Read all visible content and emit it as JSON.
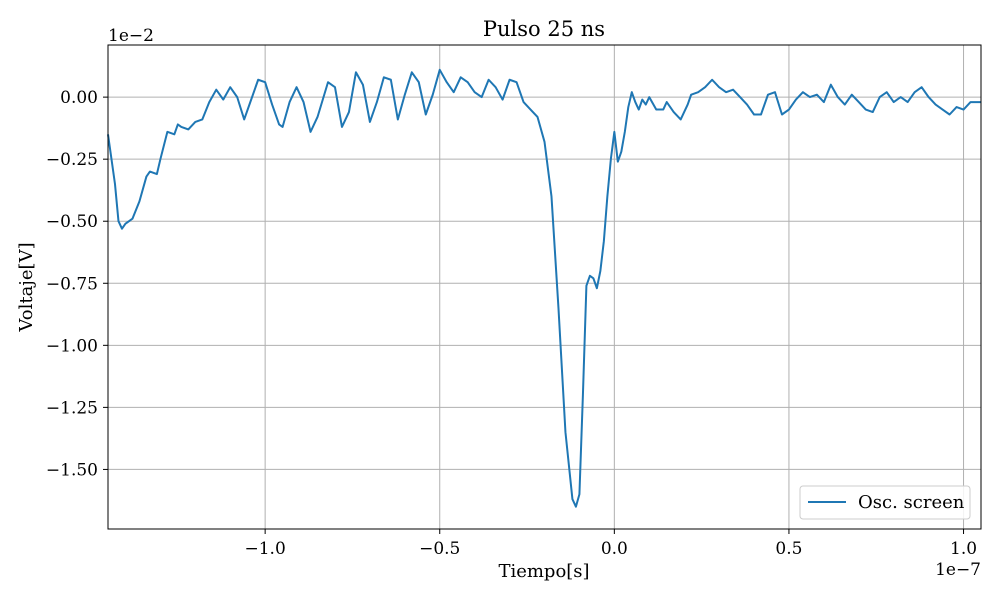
{
  "chart_data": {
    "type": "line",
    "title": "Pulso 25 ns",
    "xlabel": "Tiempo[s]",
    "ylabel": "Voltaje[V]",
    "x_offset_label": "1e−7",
    "y_offset_label": "1e−2",
    "xlim": [
      -1.45,
      1.05
    ],
    "ylim": [
      -1.74,
      0.21
    ],
    "x_scale": "1e-7",
    "y_scale": "1e-2",
    "x_ticks": [
      -1.0,
      -0.5,
      0.0,
      0.5,
      1.0
    ],
    "x_tick_labels": [
      "−1.0",
      "−0.5",
      "0.0",
      "0.5",
      "1.0"
    ],
    "y_ticks": [
      0.0,
      -0.25,
      -0.5,
      -0.75,
      -1.0,
      -1.25,
      -1.5
    ],
    "y_tick_labels": [
      "0.00",
      "−0.25",
      "−0.50",
      "−0.75",
      "−1.00",
      "−1.25",
      "−1.50"
    ],
    "grid": true,
    "legend_position": "lower-right",
    "series": [
      {
        "name": "Osc. screen",
        "color": "#1f77b4",
        "x": [
          -1.45,
          -1.43,
          -1.42,
          -1.41,
          -1.4,
          -1.38,
          -1.36,
          -1.34,
          -1.33,
          -1.31,
          -1.3,
          -1.28,
          -1.26,
          -1.25,
          -1.24,
          -1.22,
          -1.2,
          -1.18,
          -1.16,
          -1.14,
          -1.12,
          -1.1,
          -1.08,
          -1.06,
          -1.04,
          -1.02,
          -1.0,
          -0.98,
          -0.96,
          -0.95,
          -0.93,
          -0.91,
          -0.89,
          -0.87,
          -0.85,
          -0.82,
          -0.8,
          -0.78,
          -0.76,
          -0.74,
          -0.72,
          -0.7,
          -0.68,
          -0.66,
          -0.64,
          -0.62,
          -0.6,
          -0.58,
          -0.56,
          -0.54,
          -0.52,
          -0.5,
          -0.48,
          -0.46,
          -0.44,
          -0.42,
          -0.4,
          -0.38,
          -0.36,
          -0.34,
          -0.32,
          -0.3,
          -0.28,
          -0.26,
          -0.24,
          -0.22,
          -0.2,
          -0.18,
          -0.16,
          -0.14,
          -0.12,
          -0.11,
          -0.1,
          -0.09,
          -0.08,
          -0.07,
          -0.06,
          -0.05,
          -0.04,
          -0.03,
          -0.02,
          -0.01,
          0.0,
          0.01,
          0.02,
          0.03,
          0.04,
          0.05,
          0.06,
          0.07,
          0.08,
          0.09,
          0.1,
          0.12,
          0.14,
          0.15,
          0.17,
          0.19,
          0.21,
          0.22,
          0.24,
          0.26,
          0.28,
          0.3,
          0.32,
          0.34,
          0.36,
          0.38,
          0.4,
          0.42,
          0.44,
          0.46,
          0.48,
          0.5,
          0.52,
          0.54,
          0.56,
          0.58,
          0.6,
          0.62,
          0.64,
          0.66,
          0.68,
          0.7,
          0.72,
          0.74,
          0.76,
          0.78,
          0.8,
          0.82,
          0.84,
          0.86,
          0.88,
          0.9,
          0.92,
          0.94,
          0.96,
          0.98,
          1.0,
          1.02,
          1.05
        ],
        "y": [
          -0.15,
          -0.35,
          -0.5,
          -0.53,
          -0.51,
          -0.49,
          -0.42,
          -0.32,
          -0.3,
          -0.31,
          -0.25,
          -0.14,
          -0.15,
          -0.11,
          -0.12,
          -0.13,
          -0.1,
          -0.09,
          -0.02,
          0.03,
          -0.01,
          0.04,
          0.0,
          -0.09,
          -0.01,
          0.07,
          0.06,
          -0.03,
          -0.11,
          -0.12,
          -0.02,
          0.04,
          -0.02,
          -0.14,
          -0.08,
          0.06,
          0.04,
          -0.12,
          -0.06,
          0.1,
          0.05,
          -0.1,
          -0.02,
          0.08,
          0.07,
          -0.09,
          0.01,
          0.1,
          0.06,
          -0.07,
          0.01,
          0.11,
          0.06,
          0.02,
          0.08,
          0.06,
          0.02,
          0.0,
          0.07,
          0.04,
          -0.01,
          0.07,
          0.06,
          -0.02,
          -0.05,
          -0.08,
          -0.18,
          -0.4,
          -0.85,
          -1.35,
          -1.62,
          -1.65,
          -1.6,
          -1.2,
          -0.76,
          -0.72,
          -0.73,
          -0.77,
          -0.7,
          -0.58,
          -0.4,
          -0.25,
          -0.14,
          -0.26,
          -0.22,
          -0.14,
          -0.04,
          0.02,
          -0.02,
          -0.05,
          -0.01,
          -0.03,
          0.0,
          -0.05,
          -0.05,
          -0.02,
          -0.06,
          -0.09,
          -0.03,
          0.01,
          0.02,
          0.04,
          0.07,
          0.04,
          0.02,
          0.03,
          0.0,
          -0.03,
          -0.07,
          -0.07,
          0.01,
          0.02,
          -0.07,
          -0.05,
          -0.01,
          0.02,
          0.0,
          0.01,
          -0.02,
          0.05,
          0.0,
          -0.03,
          0.01,
          -0.02,
          -0.05,
          -0.06,
          0.0,
          0.02,
          -0.02,
          0.0,
          -0.02,
          0.02,
          0.04,
          0.0,
          -0.03,
          -0.05,
          -0.07,
          -0.04,
          -0.05,
          -0.02,
          -0.02
        ]
      }
    ]
  }
}
